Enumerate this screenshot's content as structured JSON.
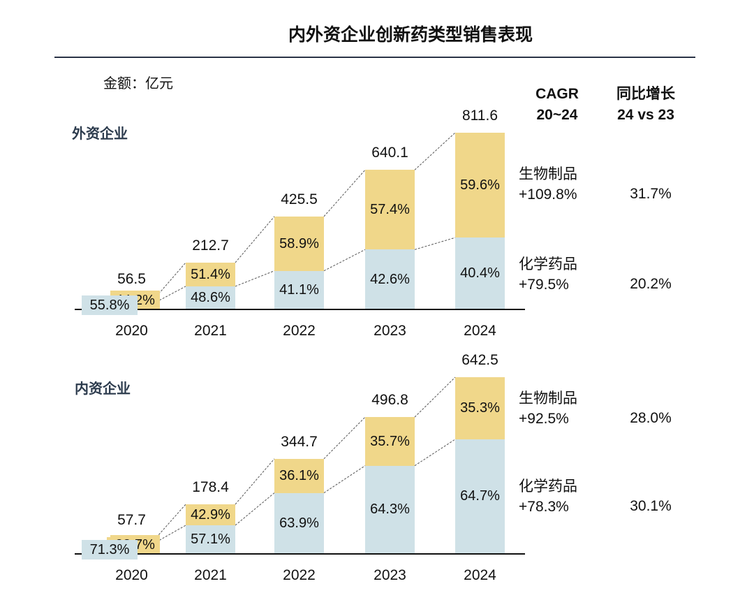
{
  "title": "内外资企业创新药类型销售表现",
  "unit": "金额：亿元",
  "headers": {
    "cagr": [
      "CAGR",
      "20~24"
    ],
    "yoy": [
      "同比增长",
      "24 vs 23"
    ]
  },
  "colors": {
    "bio": "#f0d78a",
    "chem": "#cfe1e7",
    "rule": "#2a3346"
  },
  "chart_data": [
    {
      "type": "bar",
      "stacked": true,
      "title": "外资企业",
      "categories": [
        "2020",
        "2021",
        "2022",
        "2023",
        "2024"
      ],
      "totals": [
        56.5,
        212.7,
        425.5,
        640.1,
        811.6
      ],
      "totals_labels": [
        "56.5",
        "212.7",
        "425.5",
        "640.1",
        "811.6"
      ],
      "series": [
        {
          "name": "化学药品",
          "share_labels": [
            "55.8%",
            "48.6%",
            "41.1%",
            "42.6%",
            "40.4%"
          ],
          "share": [
            55.8,
            48.6,
            41.1,
            42.6,
            40.4
          ],
          "cagr": "+79.5%",
          "yoy": "20.2%"
        },
        {
          "name": "生物制品",
          "share_labels": [
            "44.2%",
            "51.4%",
            "58.9%",
            "57.4%",
            "59.6%"
          ],
          "share": [
            44.2,
            51.4,
            58.9,
            57.4,
            59.6
          ],
          "cagr": "+109.8%",
          "yoy": "31.7%"
        }
      ]
    },
    {
      "type": "bar",
      "stacked": true,
      "title": "内资企业",
      "categories": [
        "2020",
        "2021",
        "2022",
        "2023",
        "2024"
      ],
      "totals": [
        57.7,
        178.4,
        344.7,
        496.8,
        642.5
      ],
      "totals_labels": [
        "57.7",
        "178.4",
        "344.7",
        "496.8",
        "642.5"
      ],
      "series": [
        {
          "name": "化学药品",
          "share_labels": [
            "71.3%",
            "57.1%",
            "63.9%",
            "64.3%",
            "64.7%"
          ],
          "share": [
            71.3,
            57.1,
            63.9,
            64.3,
            64.7
          ],
          "cagr": "+78.3%",
          "yoy": "30.1%"
        },
        {
          "name": "生物制品",
          "share_labels": [
            "28.7%",
            "42.9%",
            "36.1%",
            "35.7%",
            "35.3%"
          ],
          "share": [
            28.7,
            42.9,
            36.1,
            35.7,
            35.3
          ],
          "cagr": "+92.5%",
          "yoy": "28.0%"
        }
      ]
    }
  ]
}
